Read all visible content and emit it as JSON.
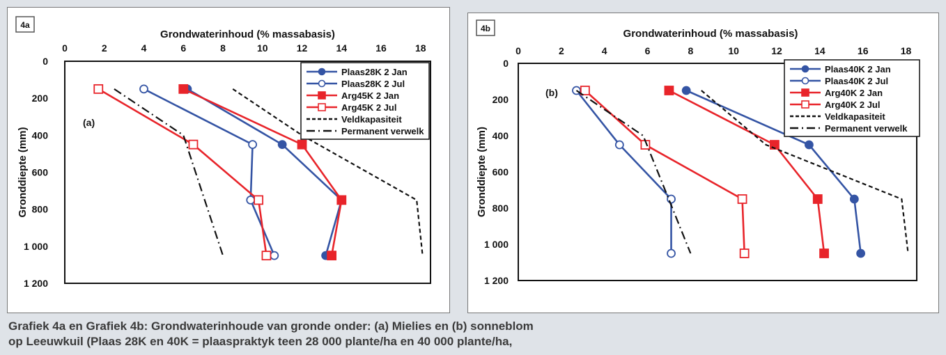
{
  "caption": {
    "line1": "Grafiek 4a en Grafiek 4b: Grondwaterinhoude van gronde onder: (a) Mielies en (b) sonneblom",
    "line2": "op Leeuwkuil (Plaas 28K en 40K = plaaspraktyk teen 28 000 plante/ha en 40 000 plante/ha,"
  },
  "colors": {
    "blue": "#3454a4",
    "red": "#e8242a",
    "black": "#111111"
  },
  "chart_data": [
    {
      "type": "line",
      "tag": "4a",
      "panel_label": "(a)",
      "xlabel": "Grondwaterinhoud (% massabasis)",
      "ylabel": "Gronddiepte (mm)",
      "x_ticks": [
        "0",
        "2",
        "4",
        "6",
        "8",
        "10",
        "12",
        "14",
        "16",
        "18"
      ],
      "y_ticks": [
        "0",
        "200",
        "400",
        "600",
        "800",
        "1 000",
        "1 200"
      ],
      "xlim": [
        0,
        18.5
      ],
      "ylim": [
        0,
        1200
      ],
      "y_inverted": true,
      "x_axis_position": "top",
      "legend_position": "top-right",
      "series": [
        {
          "name": "Plaas28K 2 Jan",
          "color": "#3454a4",
          "marker": "circle-filled",
          "dash": "solid",
          "points": [
            [
              6.2,
              150
            ],
            [
              11,
              450
            ],
            [
              14,
              750
            ],
            [
              13.2,
              1050
            ]
          ]
        },
        {
          "name": "Plaas28K 2 Jul",
          "color": "#3454a4",
          "marker": "circle-open",
          "dash": "solid",
          "points": [
            [
              4,
              150
            ],
            [
              9.5,
              450
            ],
            [
              9.4,
              750
            ],
            [
              10.6,
              1050
            ]
          ]
        },
        {
          "name": "Arg45K 2 Jan",
          "color": "#e8242a",
          "marker": "square-filled",
          "dash": "solid",
          "points": [
            [
              6,
              150
            ],
            [
              12,
              450
            ],
            [
              14,
              750
            ],
            [
              13.5,
              1050
            ]
          ]
        },
        {
          "name": "Arg45K 2 Jul",
          "color": "#e8242a",
          "marker": "square-open",
          "dash": "solid",
          "points": [
            [
              1.7,
              150
            ],
            [
              6.5,
              450
            ],
            [
              9.8,
              750
            ],
            [
              10.2,
              1050
            ]
          ]
        },
        {
          "name": "Veldkapasiteit",
          "color": "#111111",
          "marker": "none",
          "dash": "dashed",
          "points": [
            [
              8.5,
              150
            ],
            [
              12,
              400
            ],
            [
              17.8,
              750
            ],
            [
              18.1,
              1050
            ]
          ]
        },
        {
          "name": "Permanent verwelk",
          "color": "#111111",
          "marker": "none",
          "dash": "dashdot",
          "points": [
            [
              2.5,
              150
            ],
            [
              6,
              400
            ],
            [
              8,
              1050
            ]
          ]
        }
      ]
    },
    {
      "type": "line",
      "tag": "4b",
      "panel_label": "(b)",
      "xlabel": "Grondwaterinhoud (% massabasis)",
      "ylabel": "Gronddiepte (mm)",
      "x_ticks": [
        "0",
        "2",
        "4",
        "6",
        "8",
        "10",
        "12",
        "14",
        "16",
        "18"
      ],
      "y_ticks": [
        "0",
        "200",
        "400",
        "600",
        "800",
        "1 000",
        "1 200"
      ],
      "xlim": [
        0,
        18.5
      ],
      "ylim": [
        0,
        1200
      ],
      "y_inverted": true,
      "x_axis_position": "top",
      "legend_position": "top-right",
      "series": [
        {
          "name": "Plaas40K 2 Jan",
          "color": "#3454a4",
          "marker": "circle-filled",
          "dash": "solid",
          "points": [
            [
              7.8,
              150
            ],
            [
              13.5,
              450
            ],
            [
              15.6,
              750
            ],
            [
              15.9,
              1050
            ]
          ]
        },
        {
          "name": "Plaas40K 2 Jul",
          "color": "#3454a4",
          "marker": "circle-open",
          "dash": "solid",
          "points": [
            [
              2.7,
              150
            ],
            [
              4.7,
              450
            ],
            [
              7.1,
              750
            ],
            [
              7.1,
              1050
            ]
          ]
        },
        {
          "name": "Arg40K 2 Jan",
          "color": "#e8242a",
          "marker": "square-filled",
          "dash": "solid",
          "points": [
            [
              7,
              150
            ],
            [
              11.9,
              450
            ],
            [
              13.9,
              750
            ],
            [
              14.2,
              1050
            ]
          ]
        },
        {
          "name": "Arg40K 2 Jul",
          "color": "#e8242a",
          "marker": "square-open",
          "dash": "solid",
          "points": [
            [
              3.1,
              150
            ],
            [
              5.9,
              450
            ],
            [
              10.4,
              750
            ],
            [
              10.5,
              1050
            ]
          ]
        },
        {
          "name": "Veldkapasiteit",
          "color": "#111111",
          "marker": "none",
          "dash": "dashed",
          "points": [
            [
              8.5,
              150
            ],
            [
              11.5,
              450
            ],
            [
              17.8,
              750
            ],
            [
              18.1,
              1050
            ]
          ]
        },
        {
          "name": "Permanent verwelk",
          "color": "#111111",
          "marker": "none",
          "dash": "dashdot",
          "points": [
            [
              2.7,
              150
            ],
            [
              5.8,
              400
            ],
            [
              8,
              1050
            ]
          ]
        }
      ]
    }
  ]
}
